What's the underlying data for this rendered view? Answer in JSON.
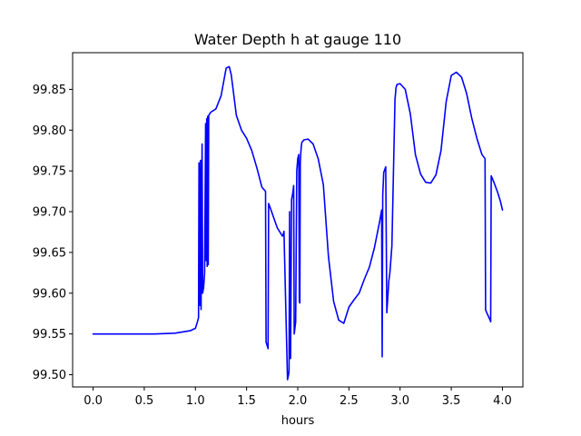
{
  "chart_data": {
    "type": "line",
    "title": "Water Depth h at gauge 110",
    "xlabel": "hours",
    "ylabel": "",
    "xlim": [
      -0.2,
      4.2
    ],
    "ylim": [
      99.485,
      99.895
    ],
    "xticks": [
      0.0,
      0.5,
      1.0,
      1.5,
      2.0,
      2.5,
      3.0,
      3.5,
      4.0
    ],
    "xtick_labels": [
      "0.0",
      "0.5",
      "1.0",
      "1.5",
      "2.0",
      "2.5",
      "3.0",
      "3.5",
      "4.0"
    ],
    "yticks": [
      99.5,
      99.55,
      99.6,
      99.65,
      99.7,
      99.75,
      99.8,
      99.85
    ],
    "ytick_labels": [
      "99.50",
      "99.55",
      "99.60",
      "99.65",
      "99.70",
      "99.75",
      "99.80",
      "99.85"
    ],
    "grid": false,
    "series": [
      {
        "name": "",
        "color": "#0000ff",
        "x": [
          0.0,
          0.3,
          0.6,
          0.8,
          0.95,
          1.0,
          1.02,
          1.03,
          1.035,
          1.045,
          1.05,
          1.055,
          1.065,
          1.07,
          1.08,
          1.09,
          1.1,
          1.105,
          1.11,
          1.115,
          1.12,
          1.125,
          1.13,
          1.15,
          1.2,
          1.25,
          1.3,
          1.33,
          1.35,
          1.4,
          1.45,
          1.5,
          1.55,
          1.6,
          1.65,
          1.685,
          1.69,
          1.71,
          1.715,
          1.73,
          1.75,
          1.8,
          1.85,
          1.86,
          1.865,
          1.9,
          1.91,
          1.915,
          1.92,
          1.925,
          1.93,
          1.94,
          1.95,
          1.96,
          1.965,
          1.98,
          1.99,
          2.0,
          2.01,
          2.015,
          2.02,
          2.025,
          2.03,
          2.035,
          2.04,
          2.06,
          2.1,
          2.15,
          2.2,
          2.25,
          2.3,
          2.35,
          2.4,
          2.45,
          2.5,
          2.55,
          2.6,
          2.65,
          2.7,
          2.75,
          2.8,
          2.82,
          2.825,
          2.83,
          2.84,
          2.86,
          2.87,
          2.88,
          2.89,
          2.9,
          2.92,
          2.95,
          2.955,
          2.96,
          2.97,
          3.0,
          3.05,
          3.1,
          3.15,
          3.2,
          3.25,
          3.3,
          3.35,
          3.4,
          3.45,
          3.5,
          3.55,
          3.6,
          3.65,
          3.7,
          3.75,
          3.8,
          3.83,
          3.835,
          3.84,
          3.88,
          3.885,
          3.89,
          3.9,
          3.92,
          3.95,
          3.98,
          4.0
        ],
        "y": [
          99.55,
          99.55,
          99.55,
          99.551,
          99.554,
          99.557,
          99.565,
          99.57,
          99.76,
          99.585,
          99.763,
          99.58,
          99.783,
          99.6,
          99.607,
          99.625,
          99.808,
          99.64,
          99.814,
          99.633,
          99.817,
          99.635,
          99.818,
          99.822,
          99.826,
          99.842,
          99.876,
          99.878,
          99.868,
          99.818,
          99.8,
          99.79,
          99.775,
          99.754,
          99.73,
          99.725,
          99.54,
          99.532,
          99.71,
          99.705,
          99.698,
          99.68,
          99.67,
          99.673,
          99.676,
          99.494,
          99.5,
          99.505,
          99.7,
          99.52,
          99.52,
          99.715,
          99.722,
          99.732,
          99.55,
          99.565,
          99.75,
          99.765,
          99.77,
          99.59,
          99.588,
          99.76,
          99.773,
          99.78,
          99.785,
          99.788,
          99.789,
          99.783,
          99.765,
          99.733,
          99.645,
          99.59,
          99.567,
          99.563,
          99.583,
          99.592,
          99.6,
          99.617,
          99.632,
          99.656,
          99.688,
          99.702,
          99.522,
          99.72,
          99.748,
          99.755,
          99.576,
          99.595,
          99.615,
          99.625,
          99.658,
          99.838,
          99.845,
          99.852,
          99.856,
          99.857,
          99.85,
          99.82,
          99.77,
          99.746,
          99.736,
          99.735,
          99.745,
          99.775,
          99.835,
          99.867,
          99.871,
          99.865,
          99.845,
          99.815,
          99.79,
          99.77,
          99.765,
          99.58,
          99.578,
          99.567,
          99.565,
          99.744,
          99.741,
          99.735,
          99.725,
          99.713,
          99.702
        ]
      }
    ]
  }
}
